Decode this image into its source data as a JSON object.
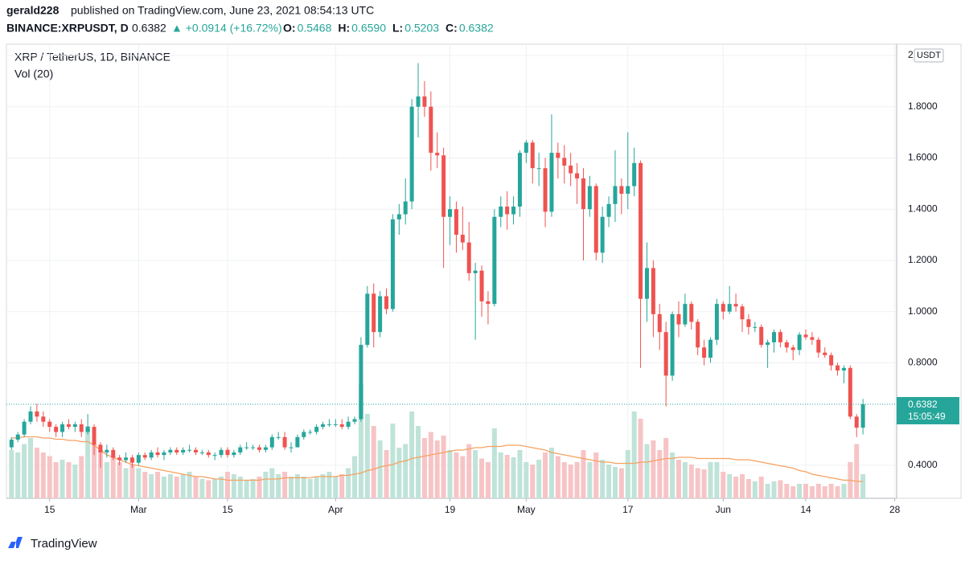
{
  "header": {
    "user": "gerald228",
    "published": "published on TradingView.com, June 23, 2021 08:54:13 UTC",
    "symbol": "BINANCE:XRPUSDT, D",
    "last": "0.6382",
    "change": "▲ +0.0914 (+16.72%)",
    "ohlc": [
      {
        "label": "O:",
        "value": "0.5468"
      },
      {
        "label": "H:",
        "value": "0.6590"
      },
      {
        "label": "L:",
        "value": "0.5203"
      },
      {
        "label": "C:",
        "value": "0.6382"
      }
    ]
  },
  "footer": {
    "brand": "TradingView"
  },
  "chart_data": {
    "type": "candlestick",
    "title": "XRP / TetherUS, 1D, BINANCE",
    "volume_title": "Vol (20)",
    "currency": "USDT",
    "countdown": "15:05:49",
    "up_color": "#26a69a",
    "down_color": "#ef5350",
    "volume_up_color": "#bfe3d8",
    "volume_down_color": "#f7c4c6",
    "ma_color": "#f7a160",
    "grid": true,
    "xlim": [
      39.2,
      179.3
    ],
    "xticks": [
      {
        "value": 46,
        "label": "15"
      },
      {
        "value": 60,
        "label": "Mar"
      },
      {
        "value": 74,
        "label": "15"
      },
      {
        "value": 91,
        "label": "Apr"
      },
      {
        "value": 109,
        "label": "19"
      },
      {
        "value": 121,
        "label": "May"
      },
      {
        "value": 137,
        "label": "17"
      },
      {
        "value": 152,
        "label": "Jun"
      },
      {
        "value": 165,
        "label": "14"
      },
      {
        "value": 179,
        "label": "28"
      }
    ],
    "ylim": [
      0.271,
      2.044
    ],
    "yticks": [
      {
        "value": 0.4,
        "label": "0.4000"
      },
      {
        "value": 0.8,
        "label": "0.8000"
      },
      {
        "value": 1,
        "label": "1.0000"
      },
      {
        "value": 1.2,
        "label": "1.2000"
      },
      {
        "value": 1.4,
        "label": "1.4000"
      },
      {
        "value": 1.6,
        "label": "1.6000"
      },
      {
        "value": 1.8,
        "label": "1.8000"
      },
      2
    ],
    "vlim": [
      0,
      100
    ],
    "x": [
      40,
      41,
      42,
      43,
      44,
      45,
      46,
      47,
      48,
      49,
      50,
      51,
      52,
      53,
      54,
      55,
      56,
      57,
      58,
      59,
      60,
      61,
      62,
      63,
      64,
      65,
      66,
      67,
      68,
      69,
      70,
      71,
      72,
      73,
      74,
      75,
      76,
      77,
      78,
      79,
      80,
      81,
      82,
      83,
      84,
      85,
      86,
      87,
      88,
      89,
      90,
      91,
      92,
      93,
      94,
      95,
      96,
      97,
      98,
      99,
      100,
      101,
      102,
      103,
      104,
      105,
      106,
      107,
      108,
      109,
      110,
      111,
      112,
      113,
      114,
      115,
      116,
      117,
      118,
      119,
      120,
      121,
      122,
      123,
      124,
      125,
      126,
      127,
      128,
      129,
      130,
      131,
      132,
      133,
      134,
      135,
      136,
      137,
      138,
      139,
      140,
      141,
      142,
      143,
      144,
      145,
      146,
      147,
      148,
      149,
      150,
      151,
      152,
      153,
      154,
      155,
      156,
      157,
      158,
      159,
      160,
      161,
      162,
      163,
      164,
      165,
      166,
      167,
      168,
      169,
      170,
      171,
      172,
      173,
      174
    ],
    "open": [
      0.47,
      0.5,
      0.52,
      0.57,
      0.61,
      0.59,
      0.57,
      0.55,
      0.53,
      0.56,
      0.55,
      0.56,
      0.53,
      0.55,
      0.48,
      0.45,
      0.46,
      0.43,
      0.42,
      0.43,
      0.41,
      0.44,
      0.43,
      0.45,
      0.44,
      0.45,
      0.46,
      0.45,
      0.46,
      0.46,
      0.45,
      0.45,
      0.44,
      0.44,
      0.46,
      0.44,
      0.45,
      0.47,
      0.47,
      0.47,
      0.46,
      0.47,
      0.51,
      0.51,
      0.47,
      0.47,
      0.51,
      0.53,
      0.53,
      0.55,
      0.56,
      0.56,
      0.56,
      0.55,
      0.57,
      0.58,
      0.87,
      1.07,
      0.92,
      1.06,
      1.01,
      1.36,
      1.38,
      1.43,
      1.8,
      1.84,
      1.8,
      1.62,
      1.61,
      1.37,
      1.4,
      1.3,
      1.27,
      1.15,
      1.16,
      1.04,
      1.03,
      1.37,
      1.41,
      1.38,
      1.41,
      1.62,
      1.66,
      1.56,
      1.56,
      1.39,
      1.62,
      1.6,
      1.57,
      1.54,
      1.52,
      1.4,
      1.49,
      1.23,
      1.37,
      1.42,
      1.49,
      1.46,
      1.49,
      1.58,
      1.05,
      1.17,
      0.99,
      0.92,
      0.75,
      0.99,
      0.95,
      1.03,
      0.96,
      0.86,
      0.82,
      0.89,
      1.03,
      1,
      1.03,
      1.02,
      0.97,
      0.94,
      0.94,
      0.87,
      0.88,
      0.92,
      0.88,
      0.86,
      0.85,
      0.91,
      0.9,
      0.89,
      0.84,
      0.83,
      0.79,
      0.77,
      0.78,
      0.59,
      0.5468
    ],
    "high": [
      0.51,
      0.53,
      0.58,
      0.63,
      0.64,
      0.61,
      0.58,
      0.56,
      0.57,
      0.58,
      0.57,
      0.58,
      0.6,
      0.56,
      0.49,
      0.48,
      0.47,
      0.44,
      0.45,
      0.44,
      0.45,
      0.45,
      0.46,
      0.47,
      0.46,
      0.47,
      0.47,
      0.47,
      0.48,
      0.47,
      0.46,
      0.46,
      0.45,
      0.47,
      0.47,
      0.46,
      0.48,
      0.49,
      0.48,
      0.48,
      0.48,
      0.52,
      0.53,
      0.53,
      0.49,
      0.52,
      0.54,
      0.54,
      0.56,
      0.57,
      0.58,
      0.58,
      0.58,
      0.59,
      0.59,
      0.9,
      1.1,
      1.11,
      1.08,
      1.09,
      1.38,
      1.42,
      1.52,
      1.83,
      1.97,
      1.9,
      1.86,
      1.7,
      1.64,
      1.45,
      1.43,
      1.41,
      1.35,
      1.19,
      1.18,
      1.08,
      1.4,
      1.45,
      1.47,
      1.45,
      1.63,
      1.67,
      1.67,
      1.62,
      1.6,
      1.77,
      1.66,
      1.65,
      1.62,
      1.58,
      1.56,
      1.53,
      1.5,
      1.41,
      1.45,
      1.63,
      1.52,
      1.7,
      1.64,
      1.59,
      1.27,
      1.2,
      1.03,
      0.96,
      1,
      1.04,
      1.07,
      1.04,
      0.97,
      0.89,
      0.9,
      1.05,
      1.04,
      1.1,
      1.07,
      1.03,
      0.99,
      0.96,
      0.95,
      0.89,
      0.93,
      0.93,
      0.89,
      0.87,
      0.92,
      0.93,
      0.92,
      0.9,
      0.86,
      0.84,
      0.8,
      0.79,
      0.79,
      0.6,
      0.659
    ],
    "low": [
      0.46,
      0.49,
      0.51,
      0.56,
      0.57,
      0.55,
      0.53,
      0.51,
      0.51,
      0.54,
      0.53,
      0.51,
      0.52,
      0.44,
      0.39,
      0.43,
      0.42,
      0.4,
      0.41,
      0.39,
      0.4,
      0.42,
      0.42,
      0.43,
      0.42,
      0.44,
      0.44,
      0.44,
      0.45,
      0.44,
      0.44,
      0.43,
      0.42,
      0.43,
      0.43,
      0.43,
      0.44,
      0.46,
      0.46,
      0.45,
      0.45,
      0.46,
      0.5,
      0.46,
      0.45,
      0.47,
      0.5,
      0.52,
      0.52,
      0.54,
      0.55,
      0.55,
      0.54,
      0.54,
      0.56,
      0.57,
      0.86,
      0.86,
      0.9,
      0.99,
      1,
      1.3,
      1.34,
      1.4,
      1.68,
      1.76,
      1.55,
      1.56,
      1.17,
      1.26,
      1.23,
      1.24,
      1.12,
      0.89,
      0.98,
      0.95,
      1.02,
      1.33,
      1.32,
      1.34,
      1.37,
      1.58,
      1.5,
      1.49,
      1.33,
      1.37,
      1.52,
      1.5,
      1.49,
      1.42,
      1.2,
      1.37,
      1.2,
      1.19,
      1.33,
      1.35,
      1.38,
      1.4,
      1.45,
      0.78,
      0.96,
      0.9,
      0.85,
      0.63,
      0.73,
      0.9,
      0.94,
      0.93,
      0.83,
      0.79,
      0.8,
      0.87,
      0.97,
      0.99,
      1,
      0.92,
      0.91,
      0.92,
      0.86,
      0.78,
      0.84,
      0.86,
      0.84,
      0.81,
      0.83,
      0.89,
      0.87,
      0.82,
      0.82,
      0.77,
      0.75,
      0.72,
      0.58,
      0.51,
      0.5203
    ],
    "close": [
      0.5,
      0.52,
      0.57,
      0.61,
      0.59,
      0.57,
      0.55,
      0.53,
      0.56,
      0.55,
      0.56,
      0.53,
      0.55,
      0.48,
      0.45,
      0.46,
      0.43,
      0.42,
      0.43,
      0.41,
      0.44,
      0.43,
      0.45,
      0.44,
      0.45,
      0.46,
      0.45,
      0.46,
      0.46,
      0.45,
      0.45,
      0.44,
      0.44,
      0.46,
      0.44,
      0.45,
      0.47,
      0.47,
      0.47,
      0.46,
      0.47,
      0.51,
      0.51,
      0.47,
      0.47,
      0.51,
      0.53,
      0.53,
      0.55,
      0.56,
      0.56,
      0.56,
      0.55,
      0.57,
      0.58,
      0.87,
      1.07,
      0.92,
      1.06,
      1.01,
      1.36,
      1.38,
      1.43,
      1.8,
      1.84,
      1.8,
      1.62,
      1.61,
      1.37,
      1.4,
      1.3,
      1.27,
      1.15,
      1.16,
      1.04,
      1.03,
      1.37,
      1.41,
      1.38,
      1.41,
      1.62,
      1.66,
      1.56,
      1.56,
      1.39,
      1.62,
      1.6,
      1.57,
      1.54,
      1.52,
      1.4,
      1.49,
      1.23,
      1.37,
      1.42,
      1.49,
      1.46,
      1.49,
      1.58,
      1.05,
      1.17,
      0.99,
      0.92,
      0.75,
      0.99,
      0.95,
      1.03,
      0.96,
      0.86,
      0.82,
      0.89,
      1.03,
      1,
      1.03,
      1.02,
      0.97,
      0.94,
      0.94,
      0.87,
      0.88,
      0.92,
      0.88,
      0.86,
      0.85,
      0.91,
      0.9,
      0.89,
      0.84,
      0.83,
      0.79,
      0.77,
      0.78,
      0.59,
      0.5468,
      0.6382
    ],
    "volume": [
      40,
      38,
      45,
      50,
      42,
      38,
      35,
      30,
      32,
      30,
      28,
      35,
      60,
      45,
      40,
      30,
      35,
      30,
      25,
      28,
      25,
      22,
      20,
      22,
      18,
      20,
      18,
      20,
      22,
      18,
      16,
      15,
      16,
      18,
      22,
      20,
      18,
      15,
      16,
      18,
      22,
      25,
      20,
      22,
      18,
      20,
      18,
      16,
      18,
      20,
      22,
      18,
      20,
      25,
      35,
      95,
      70,
      60,
      48,
      40,
      62,
      42,
      45,
      72,
      60,
      50,
      55,
      48,
      52,
      40,
      38,
      35,
      45,
      40,
      33,
      30,
      58,
      38,
      36,
      34,
      40,
      30,
      28,
      32,
      38,
      42,
      35,
      30,
      28,
      30,
      40,
      30,
      38,
      32,
      28,
      26,
      25,
      40,
      72,
      66,
      45,
      48,
      40,
      50,
      38,
      32,
      30,
      28,
      25,
      24,
      30,
      30,
      22,
      20,
      18,
      20,
      16,
      14,
      18,
      12,
      14,
      15,
      12,
      10,
      12,
      12,
      10,
      12,
      10,
      12,
      10,
      12,
      30,
      45,
      20
    ],
    "vol_ma": [
      50,
      50,
      51,
      51,
      51,
      50,
      50,
      49,
      49,
      48,
      48,
      47,
      47,
      44,
      40,
      36,
      34,
      32,
      30,
      28,
      27,
      26,
      25,
      24,
      23,
      22,
      21,
      20,
      19,
      18,
      18,
      17,
      16,
      16,
      15,
      15,
      15,
      15,
      15,
      15,
      16,
      16,
      16,
      17,
      17,
      17,
      17,
      17,
      18,
      18,
      18,
      18,
      19,
      19,
      20,
      21,
      23,
      24,
      26,
      27,
      28,
      30,
      31,
      33,
      34,
      35,
      36,
      37,
      38,
      39,
      40,
      40,
      41,
      42,
      42,
      43,
      43,
      43,
      44,
      44,
      44,
      43,
      42,
      41,
      40,
      38,
      37,
      36,
      35,
      34,
      33,
      32,
      31,
      30,
      30,
      29,
      29,
      29,
      29,
      30,
      30,
      31,
      32,
      33,
      33,
      34,
      34,
      34,
      33,
      33,
      33,
      33,
      33,
      33,
      32,
      32,
      32,
      31,
      30,
      29,
      28,
      27,
      26,
      25,
      23,
      22,
      20,
      19,
      18,
      17,
      16,
      15,
      15,
      14,
      14
    ]
  }
}
